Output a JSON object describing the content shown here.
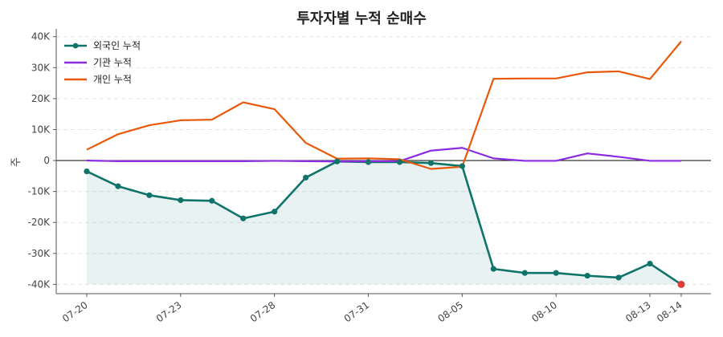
{
  "chart_data": {
    "type": "line",
    "title": "투자자별 누적 순매수",
    "ylabel": "주",
    "ylim": [
      -43000,
      42000
    ],
    "yticks": [
      40000,
      30000,
      20000,
      10000,
      0,
      -10000,
      -20000,
      -30000,
      -40000
    ],
    "ytick_labels": [
      "40K",
      "30K",
      "20K",
      "10K",
      "0",
      "-10K",
      "-20K",
      "-30K",
      "-40K"
    ],
    "x": [
      "07-20",
      "07-21",
      "07-22",
      "07-23",
      "07-24",
      "07-27",
      "07-28",
      "07-29",
      "07-30",
      "07-31",
      "08-03",
      "08-04",
      "08-05",
      "08-06",
      "08-07",
      "08-10",
      "08-11",
      "08-12",
      "08-13",
      "08-14"
    ],
    "xtick_labels": [
      "07-20",
      "07-23",
      "07-28",
      "07-31",
      "08-05",
      "08-10",
      "08-13",
      "08-14"
    ],
    "grid": "horizontal-dashed",
    "legend_position": "top-left",
    "fill_under": "외국인 누적",
    "series": [
      {
        "name": "외국인 누적",
        "color": "#0e746a",
        "markers": true,
        "values": [
          -3500,
          -8300,
          -11200,
          -12800,
          -13000,
          -18700,
          -16500,
          -5500,
          -300,
          -500,
          -500,
          -800,
          -1800,
          -35000,
          -36300,
          -36300,
          -37200,
          -37800,
          -33300,
          -40000
        ],
        "last_point_color": "#e03c3c"
      },
      {
        "name": "기관 누적",
        "color": "#8a2be2",
        "markers": false,
        "values": [
          0,
          -200,
          -200,
          -200,
          -200,
          -200,
          -100,
          -200,
          -300,
          -200,
          -200,
          3200,
          4100,
          700,
          -100,
          -100,
          2300,
          1200,
          -100,
          -100
        ]
      },
      {
        "name": "개인 누적",
        "color": "#e8590c",
        "markers": false,
        "values": [
          3500,
          8500,
          11400,
          13000,
          13200,
          18800,
          16600,
          5700,
          600,
          700,
          400,
          -2700,
          -2000,
          26400,
          26500,
          26500,
          28500,
          28800,
          26300,
          38500
        ]
      }
    ]
  }
}
